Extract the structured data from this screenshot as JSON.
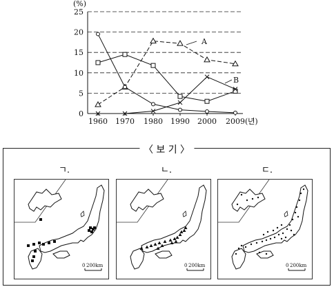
{
  "chart_data": {
    "type": "line",
    "x": [
      "1960",
      "1970",
      "1980",
      "1990",
      "2000",
      "2009"
    ],
    "x_suffix": "(년)",
    "y_unit": "(%)",
    "ylim": [
      0,
      25
    ],
    "yticks": [
      "0",
      "5",
      "10",
      "15",
      "20",
      "25"
    ],
    "grid": "dashed horizontal",
    "series": [
      {
        "name": "A",
        "marker": "triangle",
        "dash": "dashed",
        "values": [
          2.2,
          6.5,
          17.8,
          17.2,
          13.2,
          12.2
        ]
      },
      {
        "name": "",
        "marker": "square",
        "dash": "solid",
        "values": [
          12.5,
          14.5,
          11.8,
          4.2,
          3.0,
          5.5
        ]
      },
      {
        "name": "",
        "marker": "circle",
        "dash": "solid",
        "values": [
          19.5,
          6.5,
          2.3,
          0.9,
          0.5,
          0.2
        ]
      },
      {
        "name": "B",
        "marker": "cross",
        "dash": "solid",
        "values": [
          0,
          0,
          0.6,
          2.7,
          9.0,
          6.0
        ]
      }
    ]
  },
  "box": {
    "title": "〈 보 기 〉",
    "maps": [
      {
        "label": "ㄱ.",
        "scale_zero": "0",
        "scale_label": "200km"
      },
      {
        "label": "ㄴ.",
        "scale_zero": "0",
        "scale_label": "200km"
      },
      {
        "label": "ㄷ.",
        "scale_zero": "0",
        "scale_label": "200km"
      }
    ]
  }
}
